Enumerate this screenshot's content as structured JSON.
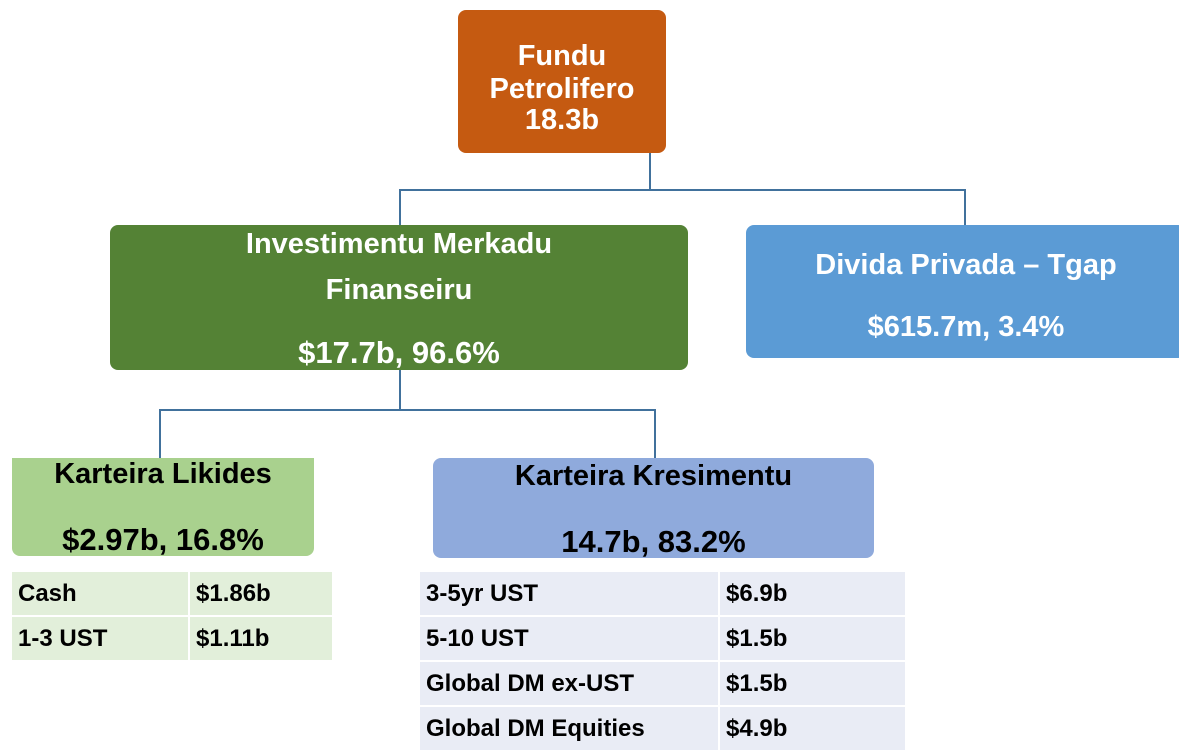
{
  "nodes": [
    {
      "label": "Fundu Petrolifero",
      "value": "18.3b"
    },
    {
      "label": "Investimentu Merkadu Finanseiru",
      "value": "$17.7b, 96.6%"
    },
    {
      "label": "Divida Privada – Tgap",
      "value": "$615.7m, 3.4%"
    },
    {
      "label": "Karteira Likides",
      "value": "$2.97b, 16.8%"
    },
    {
      "label": "Karteira Kresimentu",
      "value": "14.7b, 83.2%"
    }
  ],
  "tables": [
    {
      "rows": [
        [
          "Cash",
          "$1.86b"
        ],
        [
          "1-3 UST",
          "$1.11b"
        ]
      ]
    },
    {
      "rows": [
        [
          "3-5yr UST",
          "$6.9b"
        ],
        [
          "5-10 UST",
          "$1.5b"
        ],
        [
          "Global DM ex-UST",
          "$1.5b"
        ],
        [
          "Global DM Equities",
          "$4.9b"
        ]
      ]
    }
  ]
}
